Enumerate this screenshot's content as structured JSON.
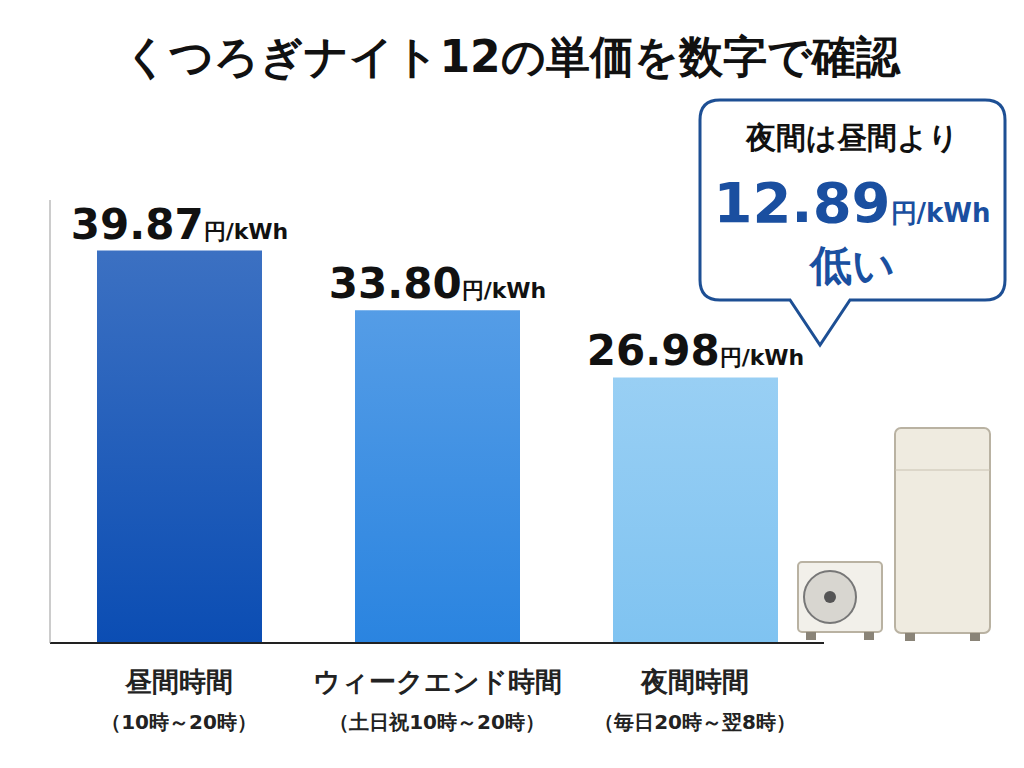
{
  "chart_data": {
    "type": "bar",
    "title": "くつろぎナイト12の単価を数字で確認",
    "categories": [
      "昼間時間\n（10時～20時）",
      "ウィークエンド時間\n（土日祝10時～20時）",
      "夜間時間\n（毎日20時～翌8時）"
    ],
    "values": [
      39.87,
      33.8,
      26.98
    ],
    "value_labels": [
      "39.87円/kWh",
      "33.80円/kWh",
      "26.98円/kWh"
    ],
    "colors": [
      "#0b4db3",
      "#2a84e0",
      "#7fc3f1"
    ],
    "ylim": [
      0,
      45
    ],
    "tick_labels": "x",
    "data_labels": true,
    "grid": false,
    "annotations": [
      "夜間は昼間より",
      "12.89円/kWh",
      "低い"
    ]
  }
}
